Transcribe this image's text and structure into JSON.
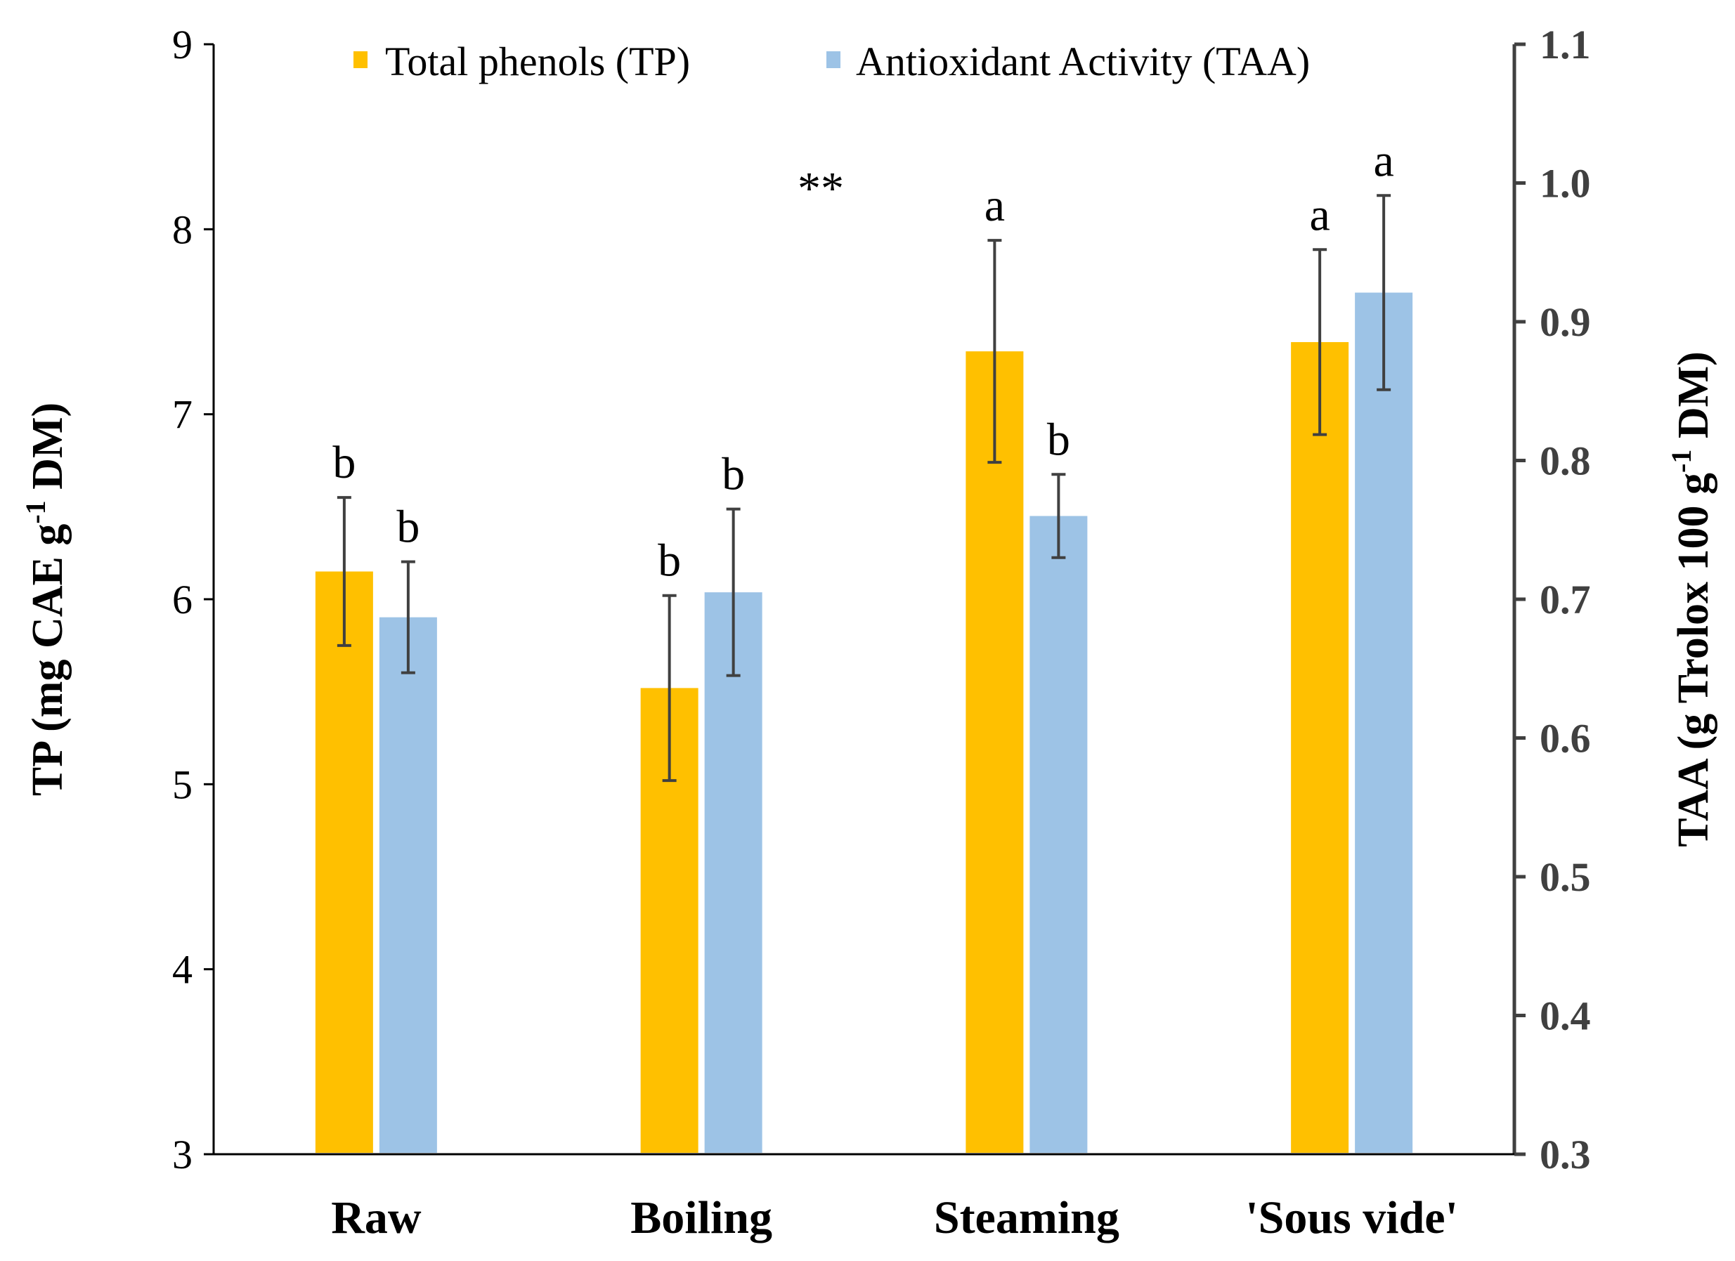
{
  "chart_data": {
    "type": "bar",
    "categories": [
      "Raw",
      "Boiling",
      "Steaming",
      "'Sous vide'"
    ],
    "series": [
      {
        "name": "Total phenols (TP)",
        "axis": "left",
        "color": "#FFC000",
        "values": [
          6.15,
          5.52,
          7.34,
          7.39
        ],
        "errors": [
          0.4,
          0.5,
          0.6,
          0.5
        ],
        "letters": [
          "b",
          "b",
          "a",
          "a"
        ]
      },
      {
        "name": "Antioxidant Activity (TAA)",
        "axis": "right",
        "color": "#9DC3E6",
        "values": [
          0.687,
          0.705,
          0.76,
          0.921
        ],
        "errors": [
          0.04,
          0.06,
          0.03,
          0.07
        ],
        "letters": [
          "b",
          "b",
          "b",
          "a"
        ]
      }
    ],
    "left_axis": {
      "label_main": "TP (mg CAE g",
      "label_sup": "-1",
      "label_end": " DM)",
      "ylim": [
        3,
        9
      ],
      "ticks": [
        "3",
        "4",
        "5",
        "6",
        "7",
        "8",
        "9"
      ]
    },
    "right_axis": {
      "label_main": "TAA (g Trolox 100 g",
      "label_sup": "-1",
      "label_end": " DM)",
      "ylim": [
        0.3,
        1.1
      ],
      "ticks": [
        "0.3",
        "0.4",
        "0.5",
        "0.6",
        "0.7",
        "0.8",
        "0.9",
        "1.0",
        "1.1"
      ]
    },
    "annotation": "**",
    "legend_position": "top-center",
    "grid": false
  }
}
